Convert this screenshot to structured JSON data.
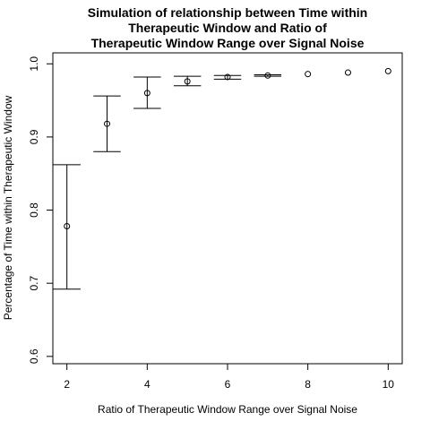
{
  "chart_data": {
    "type": "scatter",
    "title_lines": [
      "Simulation of relationship between Time within",
      "Therapeutic Window and Ratio of",
      "Therapeutic Window Range over Signal Noise"
    ],
    "xlabel": "Ratio of Therapeutic Window Range over Signal Noise",
    "ylabel": "Percentage of Time within Therapeutic Window",
    "xlim": [
      1.65,
      10.35
    ],
    "ylim": [
      0.59,
      1.015
    ],
    "x_ticks": [
      2,
      4,
      6,
      8,
      10
    ],
    "y_ticks": [
      0.6,
      0.7,
      0.8,
      0.9,
      1.0
    ],
    "x_tick_labels": [
      "2",
      "4",
      "6",
      "8",
      "10"
    ],
    "y_tick_labels": [
      "0.6",
      "0.7",
      "0.8",
      "0.9",
      "1.0"
    ],
    "grid": false,
    "legend": "none",
    "points": [
      {
        "x": 2,
        "y": 0.778,
        "lower": 0.692,
        "upper": 0.862
      },
      {
        "x": 3,
        "y": 0.918,
        "lower": 0.88,
        "upper": 0.956
      },
      {
        "x": 4,
        "y": 0.96,
        "lower": 0.939,
        "upper": 0.982
      },
      {
        "x": 5,
        "y": 0.976,
        "lower": 0.97,
        "upper": 0.983
      },
      {
        "x": 6,
        "y": 0.982,
        "lower": 0.979,
        "upper": 0.984
      },
      {
        "x": 7,
        "y": 0.984,
        "lower": 0.983,
        "upper": 0.985
      },
      {
        "x": 8,
        "y": 0.986,
        "lower": null,
        "upper": null
      },
      {
        "x": 9,
        "y": 0.988,
        "lower": null,
        "upper": null
      },
      {
        "x": 10,
        "y": 0.99,
        "lower": null,
        "upper": null
      }
    ]
  }
}
